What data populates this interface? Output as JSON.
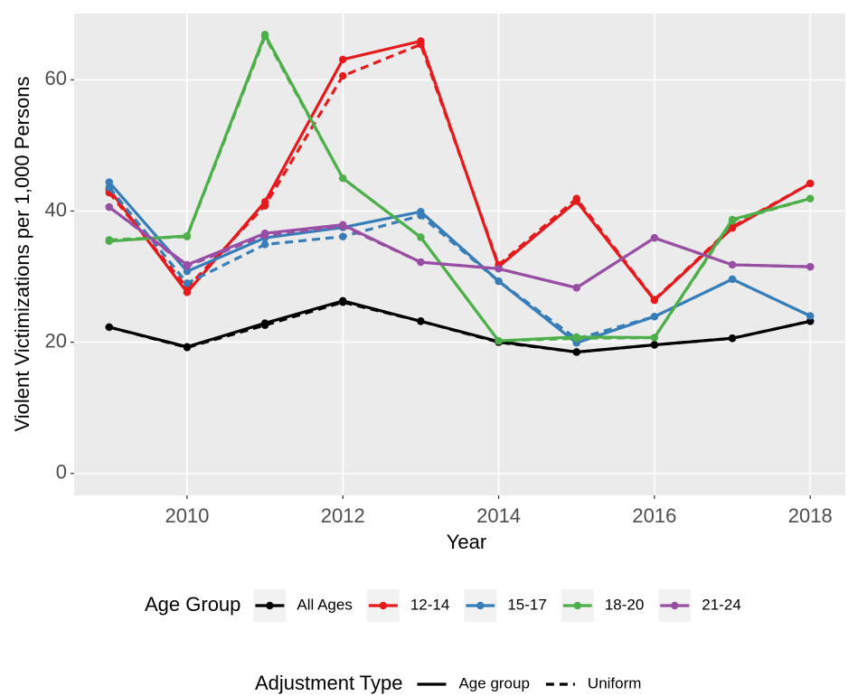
{
  "chart_data": {
    "type": "line",
    "x_label": "Year",
    "y_label": "Violent Victimizations per 1,000 Persons",
    "x": [
      2009,
      2010,
      2011,
      2012,
      2013,
      2014,
      2015,
      2016,
      2017,
      2018
    ],
    "xlim": [
      2008.55,
      2018.45
    ],
    "xticks": [
      2010,
      2012,
      2014,
      2016,
      2018
    ],
    "ylim": [
      -3.34,
      70.1
    ],
    "yticks": [
      0,
      20,
      40,
      60
    ],
    "grid": true,
    "legend_position": "bottom",
    "color_legend_title": "Age Group",
    "linetype_legend_title": "Adjustment Type",
    "linetypes": [
      {
        "name": "Age group",
        "dash": "solid"
      },
      {
        "name": "Uniform",
        "dash": "dashed"
      }
    ],
    "series": [
      {
        "name": "All Ages",
        "color": "#000000",
        "values": [
          [
            22.3,
            19.3,
            22.9,
            26.3,
            23.2,
            20.1,
            18.5,
            19.6,
            20.6,
            23.2
          ],
          [
            22.3,
            19.2,
            22.6,
            26.1,
            23.2,
            20.0,
            18.5,
            19.6,
            20.6,
            23.2
          ]
        ]
      },
      {
        "name": "12-14",
        "color": "#E41A1C",
        "values": [
          [
            43.3,
            27.6,
            41.4,
            63.1,
            65.9,
            31.5,
            41.5,
            26.4,
            37.4,
            44.2
          ],
          [
            42.8,
            28.3,
            40.8,
            60.6,
            65.4,
            31.8,
            41.9,
            26.5,
            37.6,
            44.2
          ]
        ]
      },
      {
        "name": "15-17",
        "color": "#377EB8",
        "values": [
          [
            44.4,
            30.8,
            35.9,
            37.5,
            39.9,
            29.3,
            19.9,
            23.9,
            29.6,
            24.0
          ],
          [
            43.6,
            29.0,
            34.9,
            36.1,
            39.3,
            29.3,
            20.5,
            23.9,
            29.6,
            24.0
          ]
        ]
      },
      {
        "name": "18-20",
        "color": "#4DAF4A",
        "values": [
          [
            35.4,
            36.2,
            66.9,
            45.0,
            36.0,
            20.2,
            20.8,
            20.7,
            38.7,
            41.9
          ],
          [
            35.6,
            36.1,
            66.6,
            45.0,
            36.0,
            20.2,
            20.6,
            20.7,
            38.5,
            41.9
          ]
        ]
      },
      {
        "name": "21-24",
        "color": "#984EA3",
        "values": [
          [
            40.6,
            31.8,
            36.6,
            37.9,
            32.2,
            31.2,
            28.3,
            35.9,
            31.8,
            31.5
          ],
          [
            40.6,
            31.6,
            36.3,
            37.7,
            32.2,
            31.2,
            28.3,
            35.9,
            31.8,
            31.5
          ]
        ]
      }
    ]
  }
}
